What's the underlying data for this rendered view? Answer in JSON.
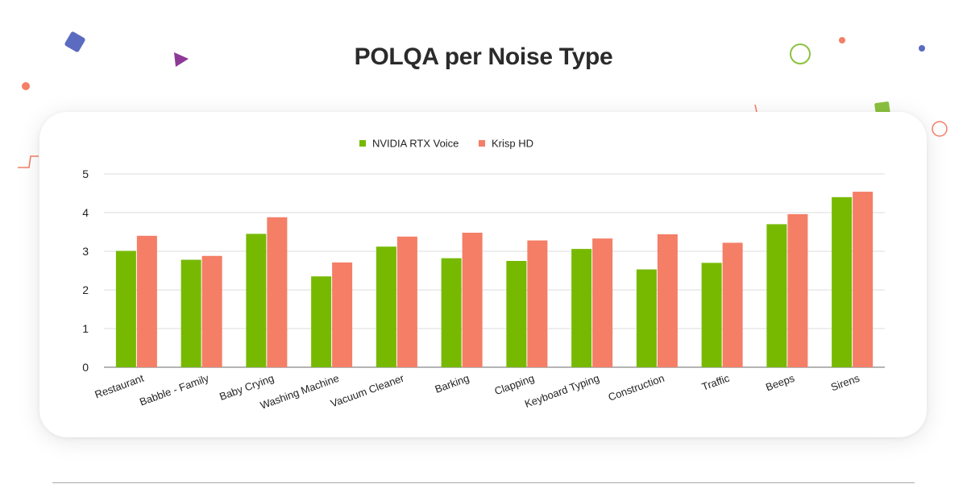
{
  "title": "POLQA per Noise Type",
  "colors": {
    "series_1": "#76b900",
    "series_2": "#f47e66",
    "grid": "#dddddd",
    "axis": "#888888",
    "text": "#222222"
  },
  "chart_data": {
    "type": "bar",
    "categories": [
      "Restaurant",
      "Babble - Family",
      "Baby Crying",
      "Washing Machine",
      "Vacuum Cleaner",
      "Barking",
      "Clapping",
      "Keyboard Typing",
      "Construction",
      "Traffic",
      "Beeps",
      "Sirens"
    ],
    "series": [
      {
        "name": "NVIDIA RTX Voice",
        "values": [
          3.01,
          2.78,
          3.45,
          2.35,
          3.12,
          2.82,
          2.75,
          3.06,
          2.53,
          2.7,
          3.7,
          4.4
        ]
      },
      {
        "name": "Krisp HD",
        "values": [
          3.4,
          2.88,
          3.88,
          2.71,
          3.38,
          3.48,
          3.28,
          3.33,
          3.44,
          3.22,
          3.96,
          4.54
        ]
      }
    ],
    "yticks": [
      0,
      1,
      2,
      3,
      4,
      5
    ],
    "ylim": [
      0,
      5
    ],
    "grid": true,
    "legend_position": "top-center",
    "xlabel": "",
    "ylabel": ""
  }
}
